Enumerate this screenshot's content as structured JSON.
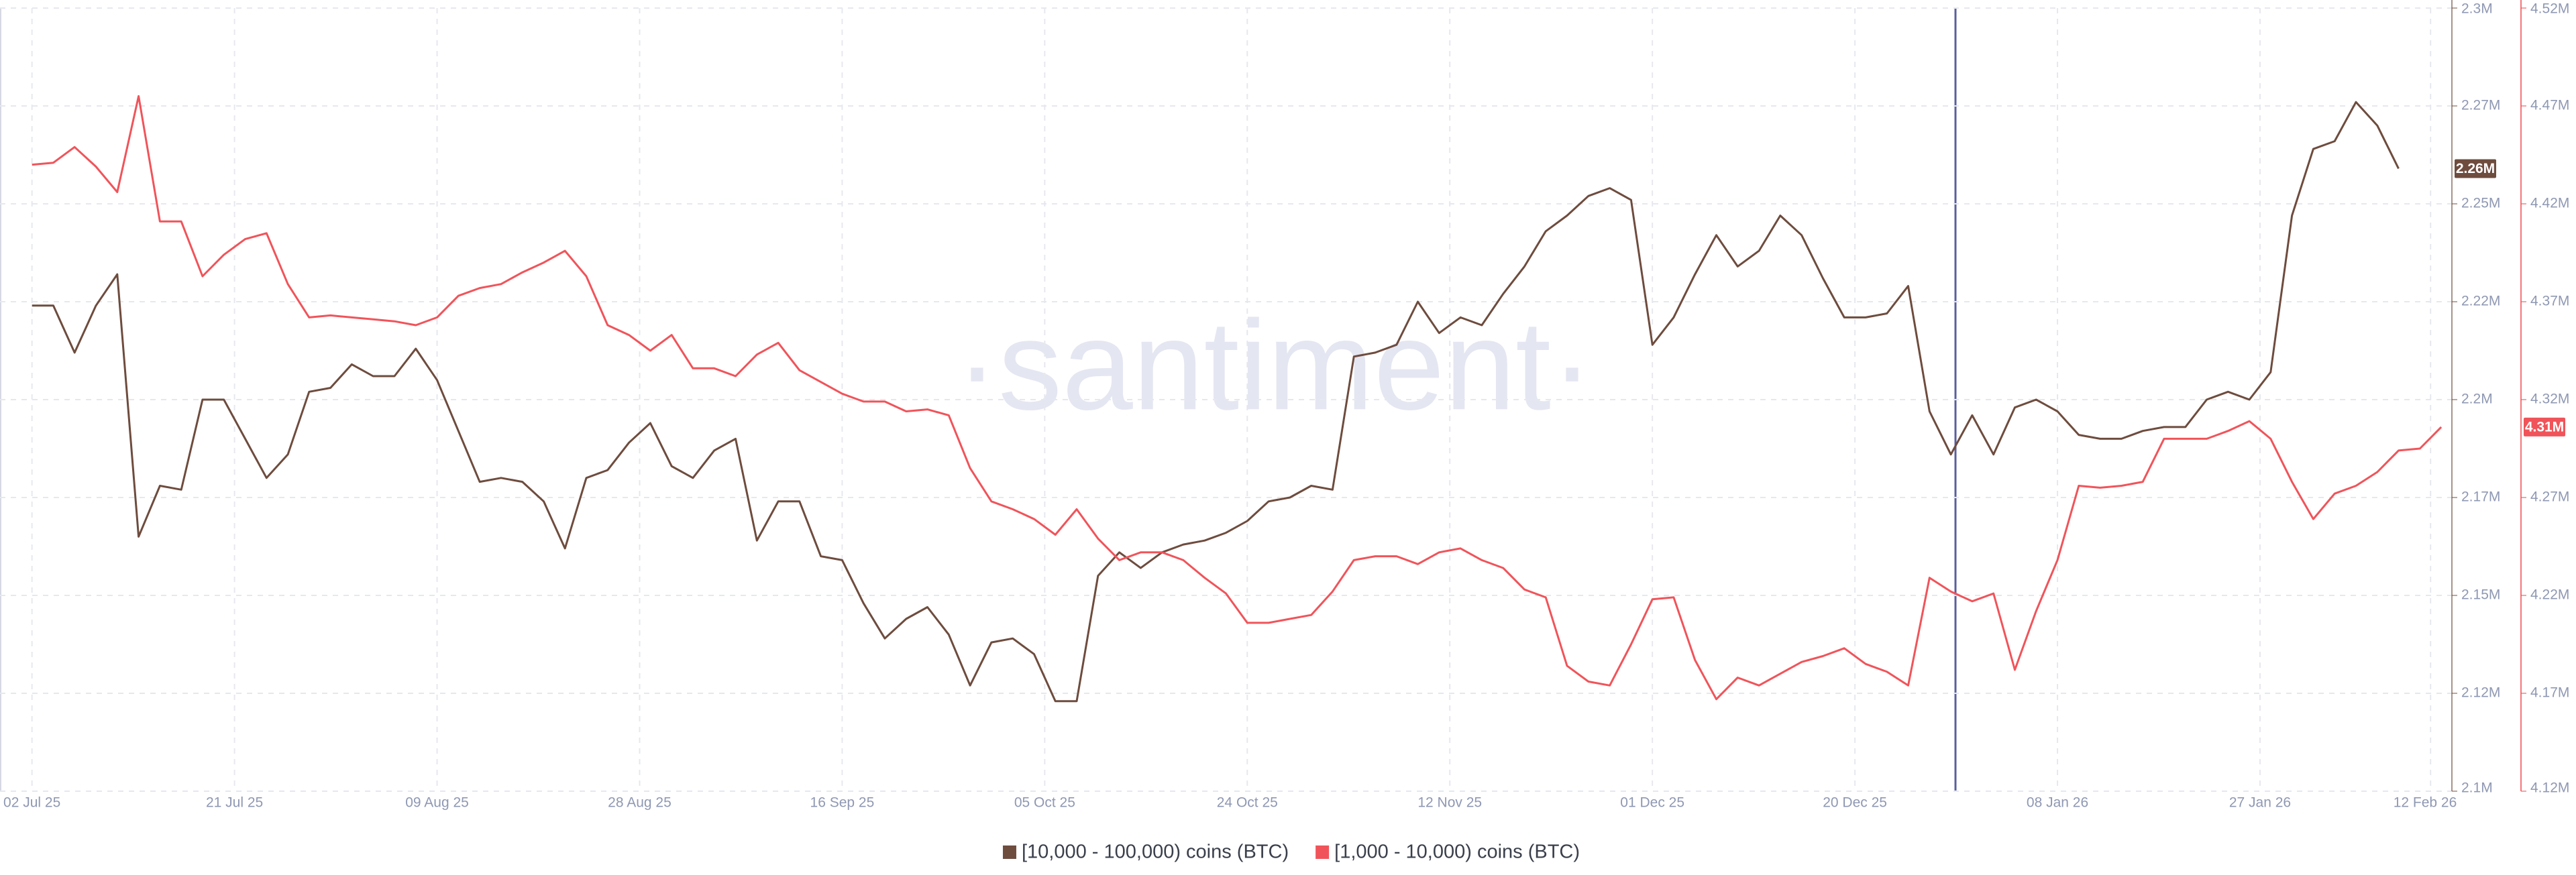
{
  "chart_data": {
    "type": "line",
    "watermark": "·santiment·",
    "grid": true,
    "x": [
      "2025-07-02",
      "2025-07-04",
      "2025-07-06",
      "2025-07-08",
      "2025-07-10",
      "2025-07-12",
      "2025-07-14",
      "2025-07-16",
      "2025-07-18",
      "2025-07-20",
      "2025-07-22",
      "2025-07-24",
      "2025-07-26",
      "2025-07-28",
      "2025-07-30",
      "2025-08-01",
      "2025-08-03",
      "2025-08-05",
      "2025-08-07",
      "2025-08-09",
      "2025-08-11",
      "2025-08-13",
      "2025-08-15",
      "2025-08-17",
      "2025-08-19",
      "2025-08-21",
      "2025-08-23",
      "2025-08-25",
      "2025-08-27",
      "2025-08-29",
      "2025-08-31",
      "2025-09-02",
      "2025-09-04",
      "2025-09-06",
      "2025-09-08",
      "2025-09-10",
      "2025-09-12",
      "2025-09-14",
      "2025-09-16",
      "2025-09-18",
      "2025-09-20",
      "2025-09-22",
      "2025-09-24",
      "2025-09-26",
      "2025-09-28",
      "2025-09-30",
      "2025-10-02",
      "2025-10-04",
      "2025-10-06",
      "2025-10-08",
      "2025-10-10",
      "2025-10-12",
      "2025-10-14",
      "2025-10-16",
      "2025-10-18",
      "2025-10-20",
      "2025-10-22",
      "2025-10-24",
      "2025-10-26",
      "2025-10-28",
      "2025-10-30",
      "2025-11-01",
      "2025-11-03",
      "2025-11-05",
      "2025-11-07",
      "2025-11-09",
      "2025-11-11",
      "2025-11-13",
      "2025-11-15",
      "2025-11-17",
      "2025-11-19",
      "2025-11-21",
      "2025-11-23",
      "2025-11-25",
      "2025-11-27",
      "2025-11-29",
      "2025-12-01",
      "2025-12-03",
      "2025-12-05",
      "2025-12-07",
      "2025-12-09",
      "2025-12-11",
      "2025-12-13",
      "2025-12-15",
      "2025-12-17",
      "2025-12-19",
      "2025-12-21",
      "2025-12-23",
      "2025-12-25",
      "2025-12-27",
      "2025-12-29",
      "2025-12-31",
      "2026-01-02",
      "2026-01-04",
      "2026-01-06",
      "2026-01-08",
      "2026-01-10",
      "2026-01-12",
      "2026-01-14",
      "2026-01-16",
      "2026-01-18",
      "2026-01-20",
      "2026-01-22",
      "2026-01-24",
      "2026-01-26",
      "2026-01-28",
      "2026-01-30",
      "2026-02-01",
      "2026-02-03",
      "2026-02-05",
      "2026-02-07",
      "2026-02-09",
      "2026-02-11",
      "2026-02-13"
    ],
    "xlim": [
      "2025-06-29",
      "2026-02-14"
    ],
    "xticks": [
      {
        "value": "2025-07-02",
        "label": "02 Jul 25"
      },
      {
        "value": "2025-07-21",
        "label": "21 Jul 25"
      },
      {
        "value": "2025-08-09",
        "label": "09 Aug 25"
      },
      {
        "value": "2025-08-28",
        "label": "28 Aug 25"
      },
      {
        "value": "2025-09-16",
        "label": "16 Sep 25"
      },
      {
        "value": "2025-10-05",
        "label": "05 Oct 25"
      },
      {
        "value": "2025-10-24",
        "label": "24 Oct 25"
      },
      {
        "value": "2025-11-12",
        "label": "12 Nov 25"
      },
      {
        "value": "2025-12-01",
        "label": "01 Dec 25"
      },
      {
        "value": "2025-12-20",
        "label": "20 Dec 25"
      },
      {
        "value": "2026-01-08",
        "label": "08 Jan 26"
      },
      {
        "value": "2026-01-27",
        "label": "27 Jan 26"
      },
      {
        "value": "2026-02-12",
        "label": "12 Feb 26"
      }
    ],
    "ylim": [
      2100000,
      2300000
    ],
    "yticks": [
      {
        "value": 2100000,
        "label": "2.1M"
      },
      {
        "value": 2125000,
        "label": "2.12M"
      },
      {
        "value": 2150000,
        "label": "2.15M"
      },
      {
        "value": 2175000,
        "label": "2.17M"
      },
      {
        "value": 2200000,
        "label": "2.2M"
      },
      {
        "value": 2225000,
        "label": "2.22M"
      },
      {
        "value": 2250000,
        "label": "2.25M"
      },
      {
        "value": 2275000,
        "label": "2.27M"
      },
      {
        "value": 2300000,
        "label": "2.3M"
      }
    ],
    "y2lim": [
      4120000,
      4520000
    ],
    "y2ticks": [
      {
        "value": 4120000,
        "label": "4.12M"
      },
      {
        "value": 4170000,
        "label": "4.17M"
      },
      {
        "value": 4220000,
        "label": "4.22M"
      },
      {
        "value": 4270000,
        "label": "4.27M"
      },
      {
        "value": 4320000,
        "label": "4.32M"
      },
      {
        "value": 4370000,
        "label": "4.37M"
      },
      {
        "value": 4420000,
        "label": "4.42M"
      },
      {
        "value": 4470000,
        "label": "4.47M"
      },
      {
        "value": 4520000,
        "label": "4.52M"
      }
    ],
    "series": [
      {
        "name": "[10,000 - 100,000) coins (BTC)",
        "color": "#6e4c3e",
        "axis": "y",
        "last_label": "2.26M",
        "values": [
          2224000,
          2224000,
          2212000,
          2224000,
          2232000,
          2165000,
          2178000,
          2177000,
          2200000,
          2200000,
          2190000,
          2180000,
          2186000,
          2202000,
          2203000,
          2209000,
          2206000,
          2206000,
          2213000,
          2205000,
          2192000,
          2179000,
          2180000,
          2179000,
          2174000,
          2162000,
          2180000,
          2182000,
          2189000,
          2194000,
          2183000,
          2180000,
          2187000,
          2190000,
          2164000,
          2174000,
          2174000,
          2160000,
          2159000,
          2148000,
          2139000,
          2144000,
          2147000,
          2140000,
          2127000,
          2138000,
          2139000,
          2135000,
          2123000,
          2123000,
          2155000,
          2161000,
          2157000,
          2161000,
          2163000,
          2164000,
          2166000,
          2169000,
          2174000,
          2175000,
          2178000,
          2177000,
          2211000,
          2212000,
          2214000,
          2225000,
          2217000,
          2221000,
          2219000,
          2227000,
          2234000,
          2243000,
          2247000,
          2252000,
          2254000,
          2251000,
          2214000,
          2221000,
          2232000,
          2242000,
          2234000,
          2238000,
          2247000,
          2242000,
          2231000,
          2221000,
          2221000,
          2222000,
          2229000,
          2197000,
          2186000,
          2196000,
          2186000,
          2198000,
          2200000,
          2197000,
          2191000,
          2190000,
          2190000,
          2192000,
          2193000,
          2193000,
          2200000,
          2202000,
          2200000,
          2207000,
          2247000,
          2264000,
          2266000,
          2276000,
          2270000,
          2259000,
          null,
          null
        ]
      },
      {
        "name": "[1,000 - 10,000) coins (BTC)",
        "color": "#f0545a",
        "axis": "y2",
        "last_label": "4.31M",
        "values": [
          4440000,
          4441000,
          4449000,
          4439000,
          4426000,
          4475000,
          4411000,
          4411000,
          4383000,
          4394000,
          4402000,
          4405000,
          4379000,
          4362000,
          4363000,
          4362000,
          4361000,
          4360000,
          4358000,
          4362000,
          4373000,
          4377000,
          4379000,
          4385000,
          4390000,
          4396000,
          4383000,
          4358000,
          4353000,
          4345000,
          4353000,
          4336000,
          4336000,
          4332000,
          4343000,
          4349000,
          4335000,
          4329000,
          4323000,
          4319000,
          4319000,
          4314000,
          4315000,
          4312000,
          4285000,
          4268000,
          4264000,
          4259000,
          4251000,
          4264000,
          4249000,
          4238000,
          4242000,
          4242000,
          4238000,
          4229000,
          4221000,
          4206000,
          4206000,
          4208000,
          4210000,
          4222000,
          4238000,
          4240000,
          4240000,
          4236000,
          4242000,
          4244000,
          4238000,
          4234000,
          4223000,
          4219000,
          4184000,
          4176000,
          4174000,
          4195000,
          4218000,
          4219000,
          4187000,
          4167000,
          4178000,
          4174000,
          4180000,
          4186000,
          4189000,
          4193000,
          4185000,
          4181000,
          4174000,
          4229000,
          4222000,
          4217000,
          4221000,
          4182000,
          4212000,
          4238000,
          4276000,
          4275000,
          4276000,
          4278000,
          4300000,
          4300000,
          4300000,
          4304000,
          4309000,
          4300000,
          4278000,
          4259000,
          4272000,
          4276000,
          4283000,
          4294000,
          4295000,
          4306000
        ]
      }
    ]
  }
}
